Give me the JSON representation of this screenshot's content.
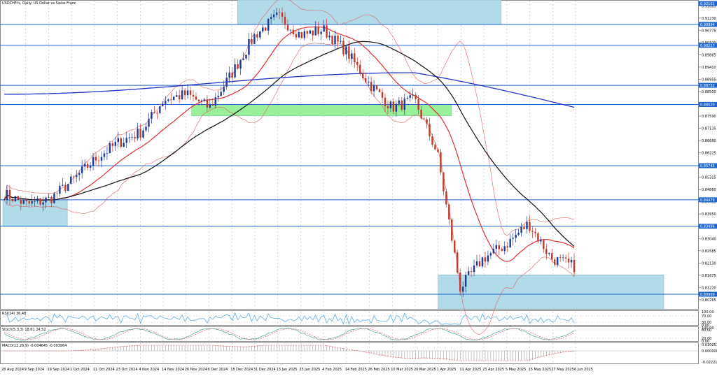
{
  "chart_title": "USDCHF.fs, Daily: US Dollar vs Swiss Franc",
  "panes": {
    "rsi_label": "RSI(14) 36.48",
    "stoch_label": "Stoch(5,3,3) 18.61 24.52",
    "macd_label": "MACD(12,26,9) -0.004645 -0.003964"
  },
  "price_axis": {
    "ticks": [
      "0.91685",
      "0.91230",
      "0.90775",
      "0.90320",
      "0.89865",
      "0.89410",
      "0.88955",
      "0.88500",
      "0.88045",
      "0.87590",
      "0.87135",
      "0.86680",
      "0.86225",
      "0.85770",
      "0.85315",
      "0.84860",
      "0.84405",
      "0.83950",
      "0.83495",
      "0.83040",
      "0.82585",
      "0.82130",
      "0.81675",
      "0.81220",
      "0.80765"
    ],
    "level_labels": [
      "0.92101",
      "0.90994",
      "0.90217",
      "0.88732",
      "0.88020",
      "0.85745",
      "0.84479",
      "0.83496",
      "0.80969"
    ]
  },
  "rsi_axis": {
    "ticks": [
      "100.00",
      "70.00",
      "30.00",
      "0.00"
    ]
  },
  "stoch_axis": {
    "ticks": [
      "100.00",
      "80.00",
      "20.00",
      "0.00"
    ]
  },
  "macd_axis": {
    "ticks": [
      "0.010051",
      "0.000000",
      "-0.022210"
    ]
  },
  "time_axis": {
    "labels": [
      "28 Aug 2024",
      "9 Sep 2024",
      "19 Sep 2024",
      "1 Oct 2024",
      "11 Oct 2024",
      "23 Oct 2024",
      "4 Nov 2024",
      "14 Nov 2024",
      "26 Nov 2024",
      "6 Dec 2024",
      "18 Dec 2024",
      "31 Dec 2024",
      "13 Jan 2025",
      "23 Jan 2025",
      "4 Feb 2025",
      "14 Feb 2025",
      "26 Feb 2025",
      "10 Mar 2025",
      "20 Mar 2025",
      "1 Apr 2025",
      "11 Apr 2025",
      "23 Apr 2025",
      "5 May 2025",
      "15 May 2025",
      "27 May 2025",
      "6 Jun 2025"
    ]
  },
  "colors": {
    "bull": "#1f3a93",
    "bear": "#c0392b",
    "ema20": "#e03030",
    "sma50": "#111111",
    "ma200": "#2233cc",
    "bollinger": "#e06060",
    "level": "#1e66d0",
    "zone_blue": "#a9d8e6",
    "zone_green": "#90ee90",
    "rsi": "#4aa3df",
    "stoch_main": "#2a9d8f",
    "stoch_signal": "#e04848"
  },
  "chart_data": {
    "type": "line",
    "symbol": "USDCHF.fs",
    "timeframe": "Daily",
    "y_range": [
      0.8045,
      0.9185
    ],
    "close_series": {
      "x_labels": [
        "28 Aug 2024",
        "9 Sep 2024",
        "19 Sep 2024",
        "1 Oct 2024",
        "11 Oct 2024",
        "23 Oct 2024",
        "4 Nov 2024",
        "14 Nov 2024",
        "26 Nov 2024",
        "6 Dec 2024",
        "18 Dec 2024",
        "31 Dec 2024",
        "13 Jan 2025",
        "23 Jan 2025",
        "4 Feb 2025",
        "14 Feb 2025",
        "26 Feb 2025",
        "10 Mar 2025",
        "20 Mar 2025",
        "1 Apr 2025",
        "11 Apr 2025",
        "23 Apr 2025",
        "5 May 2025",
        "15 May 2025",
        "27 May 2025",
        "6 Jun 2025"
      ],
      "values": [
        0.847,
        0.843,
        0.845,
        0.852,
        0.86,
        0.866,
        0.87,
        0.882,
        0.884,
        0.879,
        0.892,
        0.906,
        0.913,
        0.906,
        0.908,
        0.9,
        0.888,
        0.879,
        0.882,
        0.862,
        0.812,
        0.823,
        0.828,
        0.836,
        0.823,
        0.82
      ]
    },
    "levels": [
      0.92101,
      0.90994,
      0.90217,
      0.88732,
      0.8802,
      0.85745,
      0.84479,
      0.83496,
      0.80969
    ],
    "zones": [
      {
        "color": "blue",
        "from_label": "18 Dec 2024",
        "to_label": "5 May 2025",
        "y_low": 0.90994,
        "y_high": 0.92101
      },
      {
        "color": "blue",
        "from_label": "28 Aug 2024",
        "to_label": "1 Oct 2024",
        "y_low": 0.83496,
        "y_high": 0.84479
      },
      {
        "color": "green",
        "from_label": "26 Nov 2024",
        "to_label": "20 Mar 2025",
        "y_low": 0.87595,
        "y_high": 0.8802
      },
      {
        "color": "blue",
        "from_label": "1 Apr 2025",
        "to_label": "6 Jun 2025",
        "y_low": 0.8042,
        "y_high": 0.8169
      }
    ]
  }
}
